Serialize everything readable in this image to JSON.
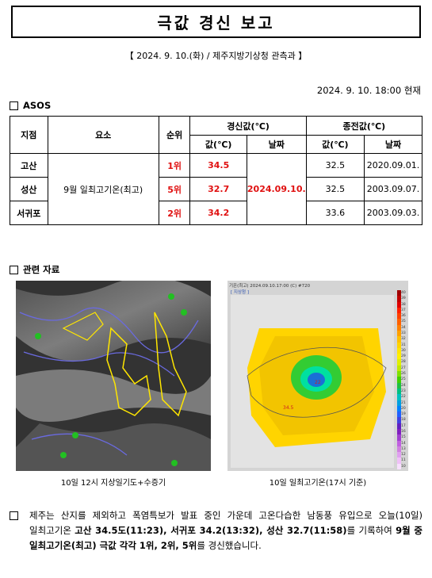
{
  "title": "극값 경신 보고",
  "subtitle": "【 2024. 9. 10.(화) / 제주지방기상청 관측과 】",
  "timestamp": "2024. 9. 10. 18:00 현재",
  "asos": {
    "heading": "ASOS",
    "headers": {
      "station": "지점",
      "element": "요소",
      "rank": "순위",
      "renewed": "경신값(℃)",
      "previous": "종전값(℃)",
      "value": "값(℃)",
      "date": "날짜"
    },
    "element_label": "9월 일최고기온(최고)",
    "renewed_date": "2024.09.10.",
    "rows": [
      {
        "station": "고산",
        "rank": "1위",
        "value": "34.5",
        "prev_value": "32.5",
        "prev_date": "2020.09.01."
      },
      {
        "station": "성산",
        "rank": "5위",
        "value": "32.7",
        "prev_value": "32.5",
        "prev_date": "2003.09.07."
      },
      {
        "station": "서귀포",
        "rank": "2위",
        "value": "34.2",
        "prev_value": "33.6",
        "prev_date": "2003.09.03."
      }
    ]
  },
  "related": {
    "heading": "관련 자료",
    "caption1": "10일 12시 지상일기도+수증기",
    "caption2": "10일 일최고기온(17시 기준)",
    "map2_header": "기온(최고) 2024.09.10.17:00 (C) #720",
    "map2_tag": "[ 지상청 ]",
    "legend_ticks": [
      "40",
      "39",
      "38",
      "37",
      "36",
      "35",
      "34",
      "33",
      "32",
      "31",
      "30",
      "29",
      "28",
      "27",
      "26",
      "25",
      "24",
      "23",
      "22",
      "21",
      "20",
      "19",
      "18",
      "17",
      "16",
      "15",
      "14",
      "13",
      "12",
      "11",
      "10"
    ]
  },
  "summary": {
    "t1": "제주는 산지를 제외하고 폭염특보가 발표 중인 가운데 고온다습한 남동풍 유입으로 오늘(10일) 일최고기온 ",
    "h1": "고산 34.5도(11:23), 서귀포 34.2(13:32), 성산 32.7(11:58)",
    "t2": "를 기록하여 ",
    "h2": "9월 중 일최고기온(최고) 극값 각각 1위, 2위, 5위",
    "t3": "를 경신했습니다."
  }
}
